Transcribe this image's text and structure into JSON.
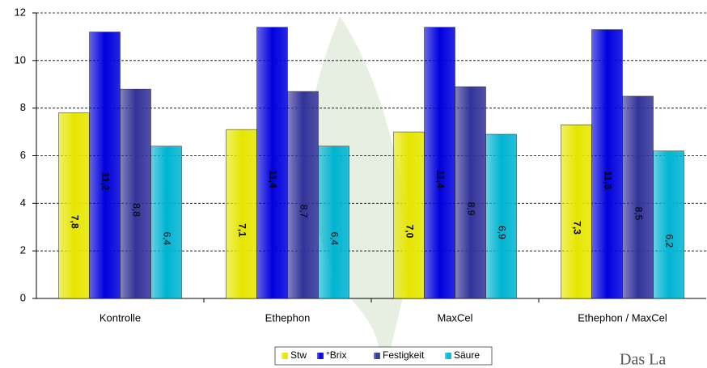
{
  "chart_data": {
    "type": "bar",
    "categories": [
      "Kontrolle",
      "Ethephon",
      "MaxCel",
      "Ethephon / MaxCel"
    ],
    "series": [
      {
        "name": "Stw",
        "color": "#e6e600",
        "values": [
          7.8,
          7.1,
          7.0,
          7.3
        ],
        "value_labels": [
          "7,8",
          "7,1",
          "7,0",
          "7,3"
        ],
        "bold_labels": true
      },
      {
        "name": "°Brix",
        "color": "#0000dd",
        "values": [
          11.2,
          11.4,
          11.4,
          11.3
        ],
        "value_labels": [
          "11,2",
          "11,4",
          "11,4",
          "11,3"
        ],
        "bold_labels": true
      },
      {
        "name": "Festigkeit",
        "color": "#333399",
        "values": [
          8.8,
          8.7,
          8.9,
          8.5
        ],
        "value_labels": [
          "8,8",
          "8,7",
          "8,9",
          "8,5"
        ],
        "bold_labels": false
      },
      {
        "name": "Säure",
        "color": "#00b4d2",
        "values": [
          6.4,
          6.4,
          6.9,
          6.2
        ],
        "value_labels": [
          "6,4",
          "6,4",
          "6,9",
          "6,2"
        ],
        "bold_labels": false
      }
    ],
    "ylim": [
      0,
      12
    ],
    "yticks": [
      0,
      2,
      4,
      6,
      8,
      10,
      12
    ],
    "grid": true,
    "legend": "bottom"
  },
  "logo_text": "Das La"
}
